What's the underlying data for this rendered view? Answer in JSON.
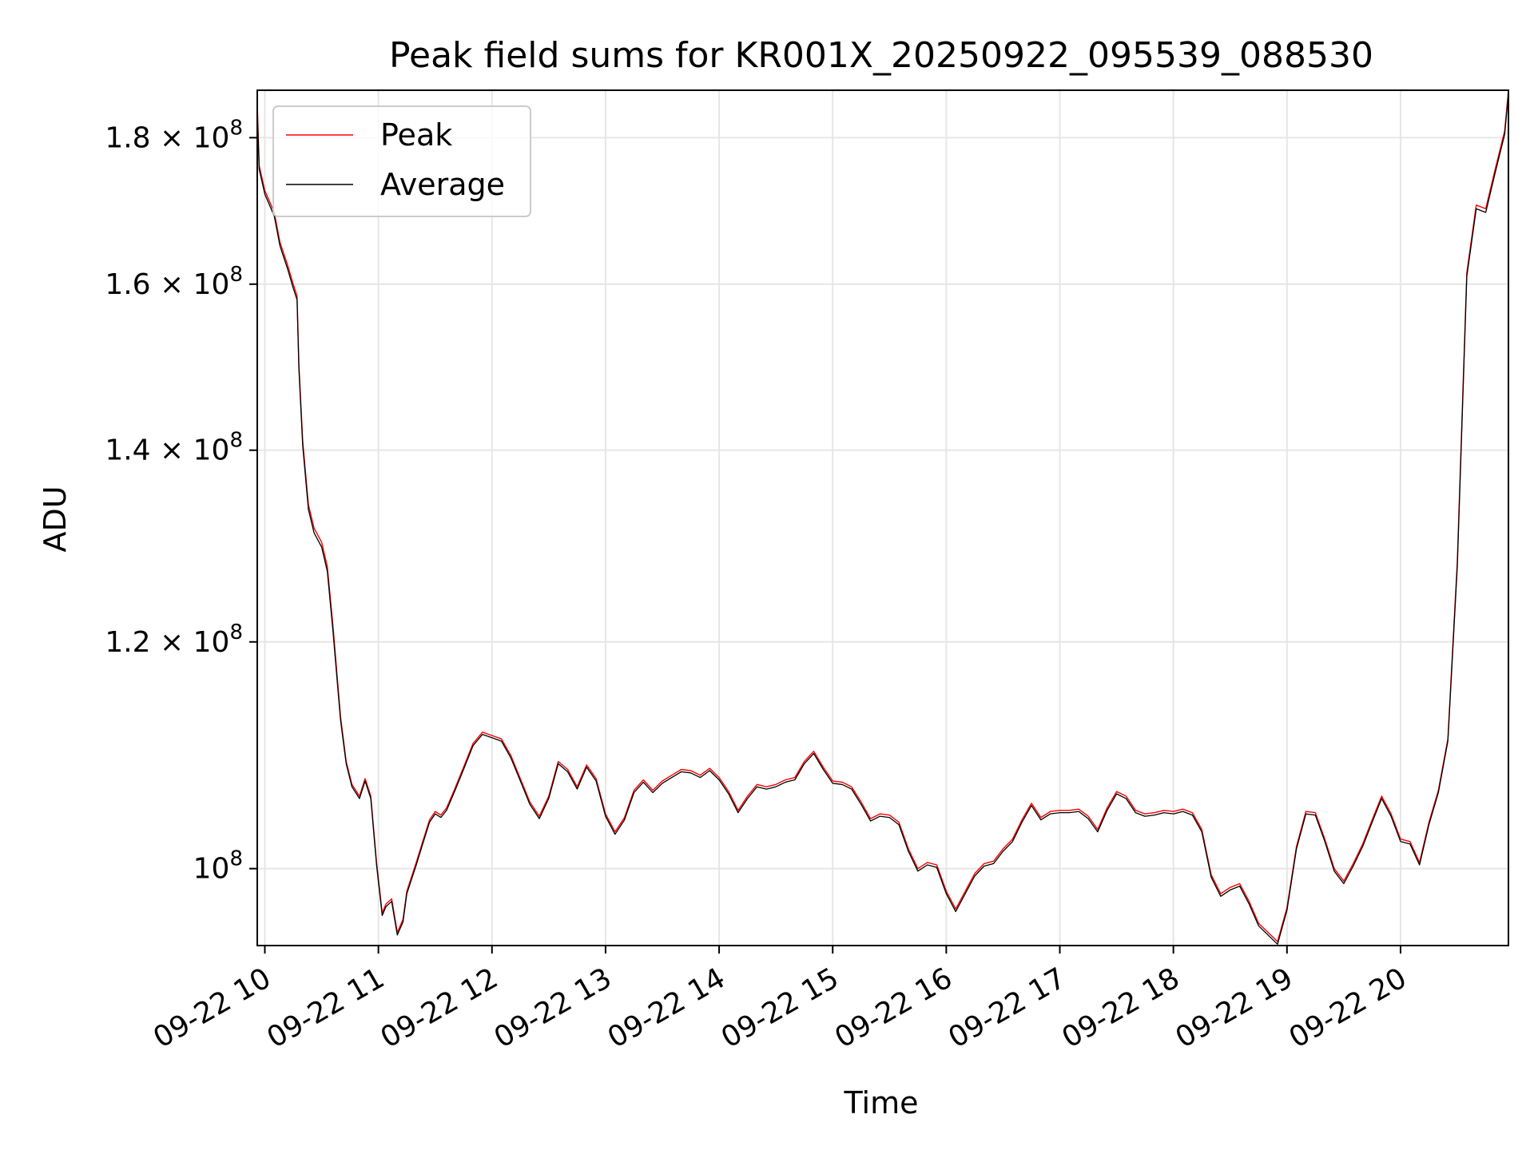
{
  "chart_data": {
    "type": "line",
    "title": "Peak field sums for KR001X_20250922_095539_088530",
    "xlabel": "Time",
    "ylabel": "ADU",
    "y_scale": "log",
    "grid": true,
    "legend_position": "top-left",
    "xlim": [
      "2025-09-22 09:56",
      "2025-09-22 20:57"
    ],
    "ylim": [
      94000000,
      187000000
    ],
    "x_ticks": [
      {
        "value": "2025-09-22 10:00",
        "label": "09-22 10"
      },
      {
        "value": "2025-09-22 11:00",
        "label": "09-22 11"
      },
      {
        "value": "2025-09-22 12:00",
        "label": "09-22 12"
      },
      {
        "value": "2025-09-22 13:00",
        "label": "09-22 13"
      },
      {
        "value": "2025-09-22 14:00",
        "label": "09-22 14"
      },
      {
        "value": "2025-09-22 15:00",
        "label": "09-22 15"
      },
      {
        "value": "2025-09-22 16:00",
        "label": "09-22 16"
      },
      {
        "value": "2025-09-22 17:00",
        "label": "09-22 17"
      },
      {
        "value": "2025-09-22 18:00",
        "label": "09-22 18"
      },
      {
        "value": "2025-09-22 19:00",
        "label": "09-22 19"
      },
      {
        "value": "2025-09-22 20:00",
        "label": "09-22 20"
      }
    ],
    "y_ticks": [
      {
        "value": 100000000,
        "mantissa": "",
        "exponent": "8"
      },
      {
        "value": 120000000,
        "mantissa": "1.2",
        "exponent": "8"
      },
      {
        "value": 140000000,
        "mantissa": "1.4",
        "exponent": "8"
      },
      {
        "value": 160000000,
        "mantissa": "1.6",
        "exponent": "8"
      },
      {
        "value": 180000000,
        "mantissa": "1.8",
        "exponent": "8"
      }
    ],
    "times_symbol": "×",
    "base": "10",
    "x": [
      "2025-09-22 09:56",
      "2025-09-22 09:57",
      "2025-09-22 10:00",
      "2025-09-22 10:05",
      "2025-09-22 10:08",
      "2025-09-22 10:12",
      "2025-09-22 10:15",
      "2025-09-22 10:17",
      "2025-09-22 10:18",
      "2025-09-22 10:20",
      "2025-09-22 10:23",
      "2025-09-22 10:26",
      "2025-09-22 10:30",
      "2025-09-22 10:33",
      "2025-09-22 10:36",
      "2025-09-22 10:40",
      "2025-09-22 10:43",
      "2025-09-22 10:46",
      "2025-09-22 10:50",
      "2025-09-22 10:53",
      "2025-09-22 10:56",
      "2025-09-22 10:59",
      "2025-09-22 11:02",
      "2025-09-22 11:04",
      "2025-09-22 11:07",
      "2025-09-22 11:10",
      "2025-09-22 11:13",
      "2025-09-22 11:15",
      "2025-09-22 11:20",
      "2025-09-22 11:23",
      "2025-09-22 11:27",
      "2025-09-22 11:30",
      "2025-09-22 11:33",
      "2025-09-22 11:36",
      "2025-09-22 11:40",
      "2025-09-22 11:45",
      "2025-09-22 11:50",
      "2025-09-22 11:55",
      "2025-09-22 12:00",
      "2025-09-22 12:05",
      "2025-09-22 12:10",
      "2025-09-22 12:15",
      "2025-09-22 12:20",
      "2025-09-22 12:25",
      "2025-09-22 12:30",
      "2025-09-22 12:35",
      "2025-09-22 12:40",
      "2025-09-22 12:45",
      "2025-09-22 12:50",
      "2025-09-22 12:55",
      "2025-09-22 13:00",
      "2025-09-22 13:05",
      "2025-09-22 13:10",
      "2025-09-22 13:15",
      "2025-09-22 13:20",
      "2025-09-22 13:25",
      "2025-09-22 13:30",
      "2025-09-22 13:35",
      "2025-09-22 13:40",
      "2025-09-22 13:45",
      "2025-09-22 13:50",
      "2025-09-22 13:55",
      "2025-09-22 14:00",
      "2025-09-22 14:05",
      "2025-09-22 14:10",
      "2025-09-22 14:15",
      "2025-09-22 14:20",
      "2025-09-22 14:25",
      "2025-09-22 14:30",
      "2025-09-22 14:35",
      "2025-09-22 14:40",
      "2025-09-22 14:45",
      "2025-09-22 14:50",
      "2025-09-22 14:55",
      "2025-09-22 15:00",
      "2025-09-22 15:05",
      "2025-09-22 15:10",
      "2025-09-22 15:15",
      "2025-09-22 15:20",
      "2025-09-22 15:25",
      "2025-09-22 15:30",
      "2025-09-22 15:35",
      "2025-09-22 15:40",
      "2025-09-22 15:45",
      "2025-09-22 15:50",
      "2025-09-22 15:55",
      "2025-09-22 16:00",
      "2025-09-22 16:05",
      "2025-09-22 16:10",
      "2025-09-22 16:15",
      "2025-09-22 16:20",
      "2025-09-22 16:25",
      "2025-09-22 16:30",
      "2025-09-22 16:35",
      "2025-09-22 16:40",
      "2025-09-22 16:45",
      "2025-09-22 16:50",
      "2025-09-22 16:55",
      "2025-09-22 17:00",
      "2025-09-22 17:05",
      "2025-09-22 17:10",
      "2025-09-22 17:15",
      "2025-09-22 17:20",
      "2025-09-22 17:25",
      "2025-09-22 17:30",
      "2025-09-22 17:35",
      "2025-09-22 17:40",
      "2025-09-22 17:45",
      "2025-09-22 17:50",
      "2025-09-22 17:55",
      "2025-09-22 18:00",
      "2025-09-22 18:05",
      "2025-09-22 18:10",
      "2025-09-22 18:15",
      "2025-09-22 18:20",
      "2025-09-22 18:25",
      "2025-09-22 18:30",
      "2025-09-22 18:35",
      "2025-09-22 18:40",
      "2025-09-22 18:45",
      "2025-09-22 18:50",
      "2025-09-22 18:55",
      "2025-09-22 19:00",
      "2025-09-22 19:05",
      "2025-09-22 19:10",
      "2025-09-22 19:15",
      "2025-09-22 19:20",
      "2025-09-22 19:25",
      "2025-09-22 19:30",
      "2025-09-22 19:35",
      "2025-09-22 19:40",
      "2025-09-22 19:45",
      "2025-09-22 19:50",
      "2025-09-22 19:55",
      "2025-09-22 20:00",
      "2025-09-22 20:05",
      "2025-09-22 20:10",
      "2025-09-22 20:15",
      "2025-09-22 20:20",
      "2025-09-22 20:25",
      "2025-09-22 20:30",
      "2025-09-22 20:35",
      "2025-09-22 20:40",
      "2025-09-22 20:45",
      "2025-09-22 20:50",
      "2025-09-22 20:55",
      "2025-09-22 20:57"
    ],
    "series": [
      {
        "name": "Peak",
        "color": "#ff0000",
        "values": [
          185000000,
          176000000,
          172500000,
          169500000,
          165500000,
          162500000,
          160000000,
          158500000,
          150000000,
          141000000,
          134000000,
          131500000,
          130000000,
          127500000,
          121500000,
          113000000,
          109000000,
          107000000,
          106000000,
          107500000,
          106000000,
          100500000,
          96500000,
          97200000,
          97600000,
          95000000,
          96000000,
          98200000,
          100500000,
          102000000,
          104000000,
          104700000,
          104400000,
          105000000,
          106500000,
          108500000,
          110600000,
          111600000,
          111300000,
          111000000,
          109500000,
          107500000,
          105500000,
          104300000,
          106000000,
          109000000,
          108300000,
          106800000,
          108700000,
          107500000,
          104500000,
          103000000,
          104200000,
          106500000,
          107400000,
          106500000,
          107300000,
          107800000,
          108300000,
          108200000,
          107800000,
          108400000,
          107600000,
          106400000,
          104800000,
          106000000,
          107000000,
          106800000,
          107000000,
          107400000,
          107600000,
          109000000,
          109900000,
          108500000,
          107300000,
          107200000,
          106800000,
          105500000,
          104100000,
          104500000,
          104400000,
          103800000,
          101600000,
          100000000,
          100500000,
          100300000,
          98200000,
          96800000,
          98200000,
          99600000,
          100400000,
          100600000,
          101600000,
          102400000,
          104000000,
          105400000,
          104200000,
          104700000,
          104800000,
          104800000,
          104900000,
          104300000,
          103200000,
          105000000,
          106400000,
          106000000,
          104800000,
          104500000,
          104600000,
          104800000,
          104700000,
          104900000,
          104600000,
          103200000,
          99500000,
          98000000,
          98500000,
          98800000,
          97400000,
          95700000,
          95000000,
          94300000,
          96900000,
          101800000,
          104700000,
          104600000,
          102400000,
          100000000,
          99000000,
          100400000,
          102000000,
          104000000,
          106000000,
          104500000,
          102400000,
          102200000,
          100500000,
          103800000,
          106500000,
          111000000,
          128000000,
          161500000,
          170500000,
          170000000,
          175500000,
          181000000,
          187000000
        ]
      },
      {
        "name": "Average",
        "color": "#000000",
        "values": [
          184000000,
          175500000,
          172000000,
          169000000,
          165000000,
          162000000,
          159500000,
          158000000,
          149500000,
          140500000,
          133500000,
          131000000,
          129500000,
          127000000,
          121000000,
          112700000,
          108800000,
          106800000,
          105800000,
          107300000,
          105800000,
          100300000,
          96300000,
          97000000,
          97400000,
          94800000,
          95800000,
          98000000,
          100300000,
          101800000,
          103800000,
          104500000,
          104200000,
          104800000,
          106300000,
          108300000,
          110400000,
          111400000,
          111100000,
          110800000,
          109300000,
          107300000,
          105300000,
          104100000,
          105800000,
          108800000,
          108100000,
          106600000,
          108500000,
          107300000,
          104300000,
          102800000,
          104000000,
          106300000,
          107200000,
          106300000,
          107100000,
          107600000,
          108100000,
          108000000,
          107600000,
          108200000,
          107400000,
          106200000,
          104600000,
          105800000,
          106800000,
          106600000,
          106800000,
          107200000,
          107400000,
          108800000,
          109700000,
          108300000,
          107100000,
          107000000,
          106600000,
          105300000,
          103900000,
          104300000,
          104200000,
          103600000,
          101400000,
          99800000,
          100300000,
          100100000,
          98000000,
          96600000,
          98000000,
          99400000,
          100200000,
          100400000,
          101400000,
          102200000,
          103800000,
          105200000,
          104000000,
          104500000,
          104600000,
          104600000,
          104700000,
          104100000,
          103000000,
          104800000,
          106200000,
          105800000,
          104600000,
          104300000,
          104400000,
          104600000,
          104500000,
          104700000,
          104400000,
          103000000,
          99300000,
          97800000,
          98300000,
          98600000,
          97200000,
          95500000,
          94800000,
          94100000,
          96700000,
          101600000,
          104500000,
          104400000,
          102200000,
          99800000,
          98800000,
          100200000,
          101800000,
          103800000,
          105800000,
          104300000,
          102200000,
          102000000,
          100300000,
          103600000,
          106300000,
          110800000,
          127500000,
          161000000,
          170000000,
          169500000,
          175000000,
          180500000,
          186500000
        ]
      }
    ]
  }
}
